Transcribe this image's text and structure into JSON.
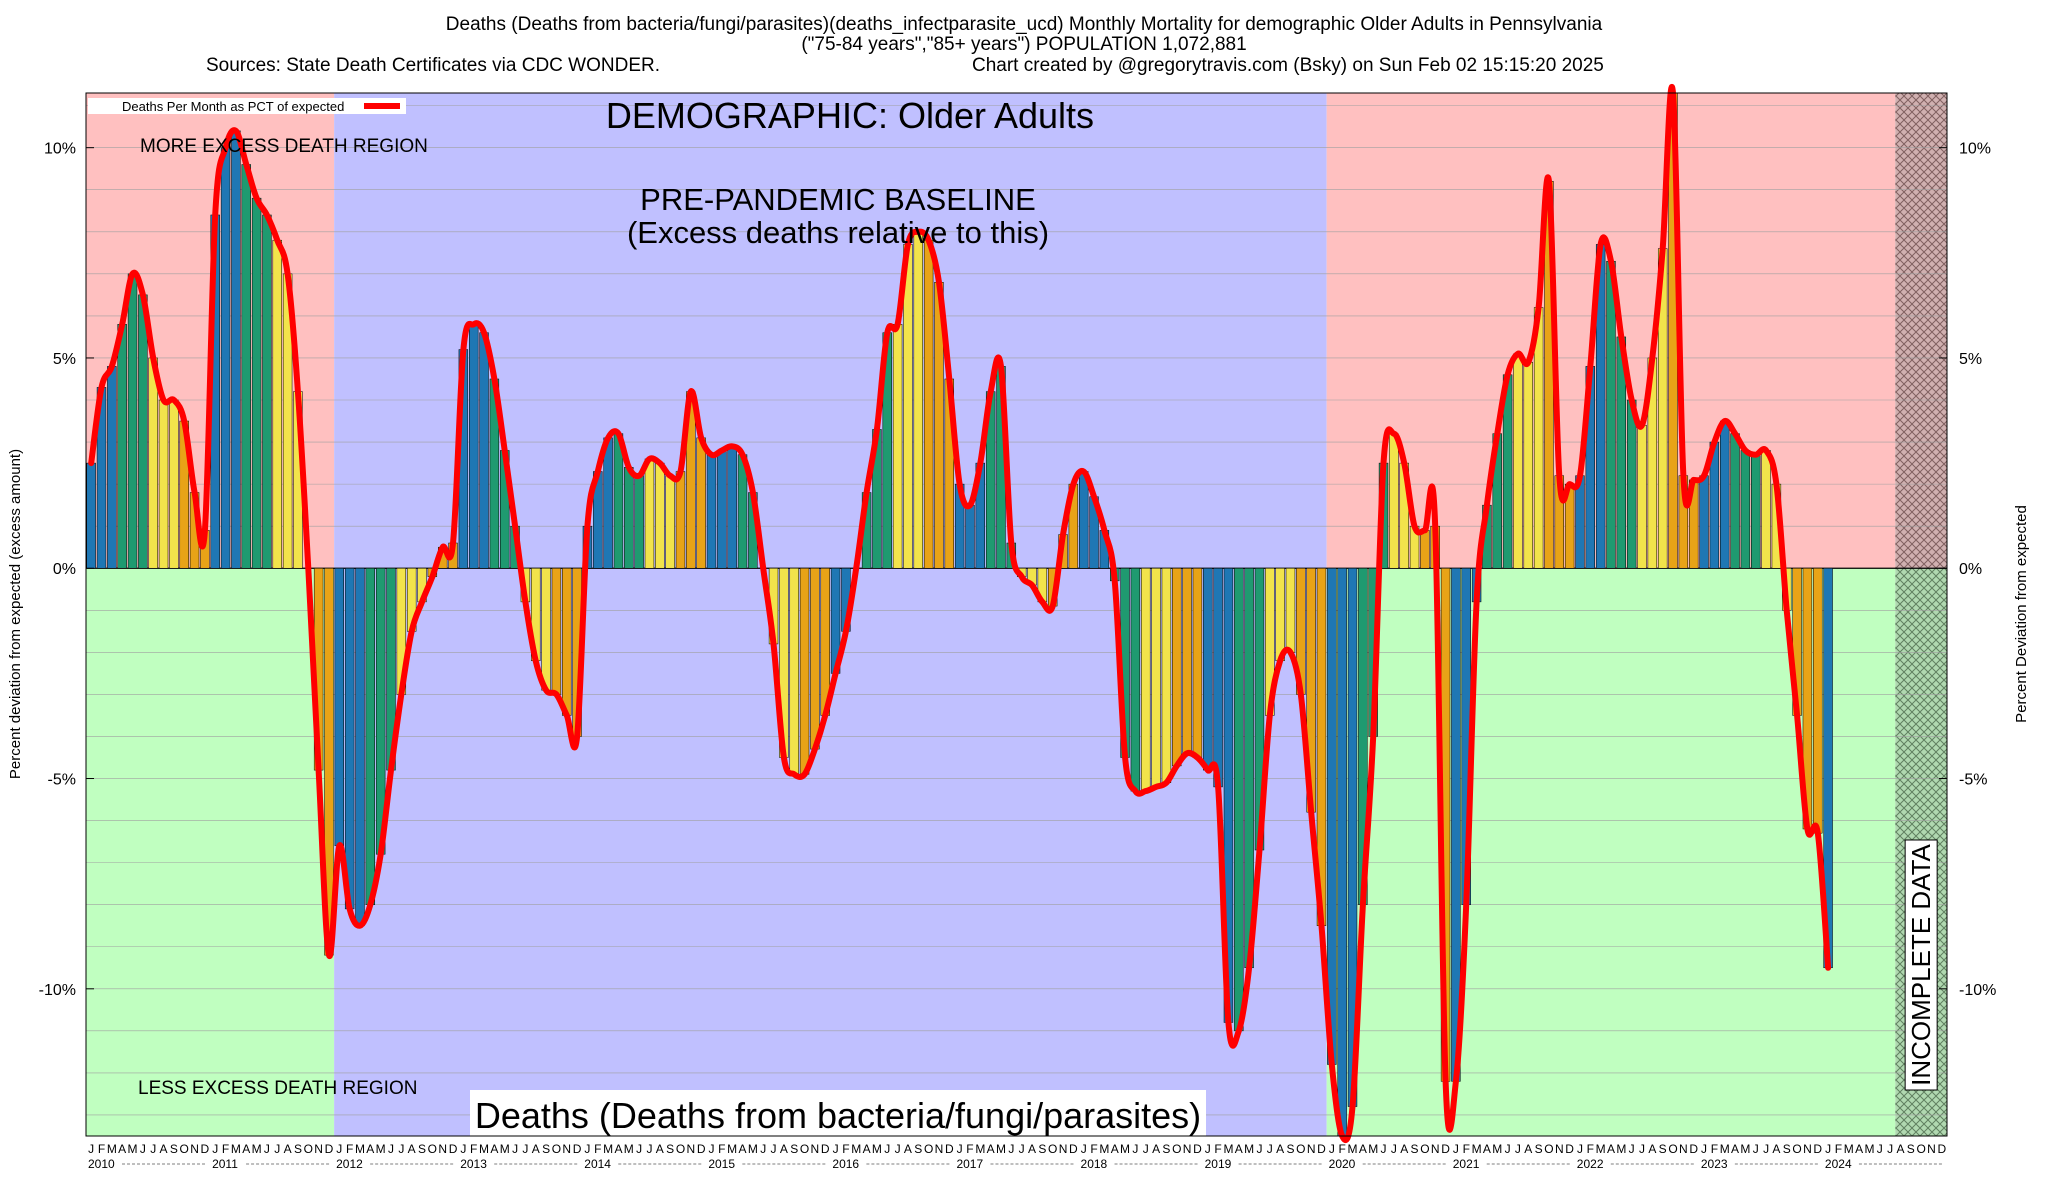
{
  "header": {
    "line1": "Deaths (Deaths from bacteria/fungi/parasites)(deaths_infectparasite_ucd) Monthly Mortality for demographic Older Adults in Pennsylvania",
    "line2": "(\"75-84 years\",\"85+ years\") POPULATION 1,072,881",
    "line3_left": "Sources: State Death Certificates via CDC WONDER.",
    "line3_right": "Chart created by @gregorytravis.com (Bsky) on Sun Feb 02 15:15:20 2025"
  },
  "chart_data": {
    "type": "bar",
    "title": "DEMOGRAPHIC: Older Adults",
    "bottom_title": "Deaths (Deaths from bacteria/fungi/parasites)",
    "ylabel_left": "Percent deviation from expected (excess amount)",
    "ylabel_right": "Percent Deviation from expected",
    "legend_label": "Deaths Per Month as PCT of expected",
    "legend_position": "top-left",
    "ylim": [
      -13.5,
      11.3
    ],
    "yticks": [
      10,
      5,
      0,
      -5,
      -10
    ],
    "ytick_labels": [
      "10%",
      "5%",
      "0%",
      "-5%",
      "-10%"
    ],
    "grid": true,
    "x_start": "2010-01",
    "months_per_year_labels": [
      "J",
      "F",
      "M",
      "A",
      "M",
      "J",
      "J",
      "A",
      "S",
      "O",
      "N",
      "D"
    ],
    "years": [
      "2010",
      "2011",
      "2012",
      "2013",
      "2014",
      "2015",
      "2016",
      "2017",
      "2018",
      "2019",
      "2020",
      "2021",
      "2022",
      "2023",
      "2024"
    ],
    "regions": {
      "more_excess_label": "MORE EXCESS DEATH REGION",
      "less_excess_label": "LESS EXCESS DEATH REGION",
      "baseline_label_1": "PRE-PANDEMIC BASELINE",
      "baseline_label_2": "(Excess deaths relative to this)",
      "baseline_start": "2012-01",
      "baseline_end": "2019-12",
      "incomplete_label": "INCOMPLETE DATA",
      "incomplete_start": "2024-08"
    },
    "colors": {
      "season_1": "#1f77b4",
      "season_2": "#1f9a70",
      "season_3": "#f2e34b",
      "season_4": "#e8a317",
      "line": "#ff0000",
      "more_region": "#ffc0c0",
      "less_region": "#c0ffc0",
      "baseline_region": "#c0c0ff"
    },
    "series": [
      {
        "name": "Deaths Per Month as PCT of expected",
        "values": [
          2.5,
          4.3,
          4.8,
          5.8,
          7.0,
          6.5,
          5.0,
          4.0,
          4.0,
          3.5,
          1.8,
          0.9,
          8.4,
          10.0,
          10.4,
          9.6,
          8.8,
          8.4,
          7.8,
          7.0,
          4.2,
          0.0,
          -4.8,
          -9.2,
          -6.6,
          -8.1,
          -8.5,
          -8.0,
          -6.8,
          -4.8,
          -3.0,
          -1.5,
          -0.8,
          -0.2,
          0.5,
          0.6,
          5.2,
          5.8,
          5.6,
          4.5,
          2.8,
          1.0,
          -0.8,
          -2.2,
          -2.9,
          -3.0,
          -3.5,
          -4.0,
          1.0,
          2.3,
          3.1,
          3.2,
          2.4,
          2.2,
          2.6,
          2.5,
          2.2,
          2.3,
          4.2,
          3.1,
          2.7,
          2.8,
          2.9,
          2.7,
          1.8,
          0.0,
          -1.8,
          -4.5,
          -4.9,
          -4.9,
          -4.3,
          -3.5,
          -2.5,
          -1.5,
          0.0,
          1.8,
          3.3,
          5.6,
          5.8,
          7.7,
          8.0,
          7.8,
          6.8,
          4.5,
          2.0,
          1.5,
          2.5,
          4.2,
          4.8,
          0.6,
          -0.2,
          -0.4,
          -0.8,
          -0.9,
          0.8,
          2.0,
          2.3,
          1.7,
          0.9,
          -0.3,
          -4.5,
          -5.3,
          -5.3,
          -5.2,
          -5.1,
          -4.7,
          -4.4,
          -4.5,
          -4.8,
          -5.2,
          -10.8,
          -11.0,
          -9.5,
          -6.7,
          -3.5,
          -2.2,
          -2.0,
          -3.0,
          -5.8,
          -8.5,
          -11.8,
          -13.5,
          -12.8,
          -8.0,
          -4.0,
          2.5,
          3.2,
          2.5,
          1.0,
          0.9,
          1.0,
          -12.2,
          -12.2,
          -8.0,
          -0.8,
          1.5,
          3.2,
          4.6,
          5.1,
          4.9,
          6.2,
          9.2,
          2.2,
          2.0,
          2.2,
          4.8,
          7.7,
          7.3,
          5.5,
          4.0,
          3.4,
          5.0,
          7.6,
          11.3,
          2.2,
          2.1,
          2.2,
          3.0,
          3.5,
          3.2,
          2.8,
          2.7,
          2.8,
          2.0,
          -1.0,
          -3.5,
          -6.2,
          -6.3,
          -9.5
        ]
      }
    ]
  }
}
